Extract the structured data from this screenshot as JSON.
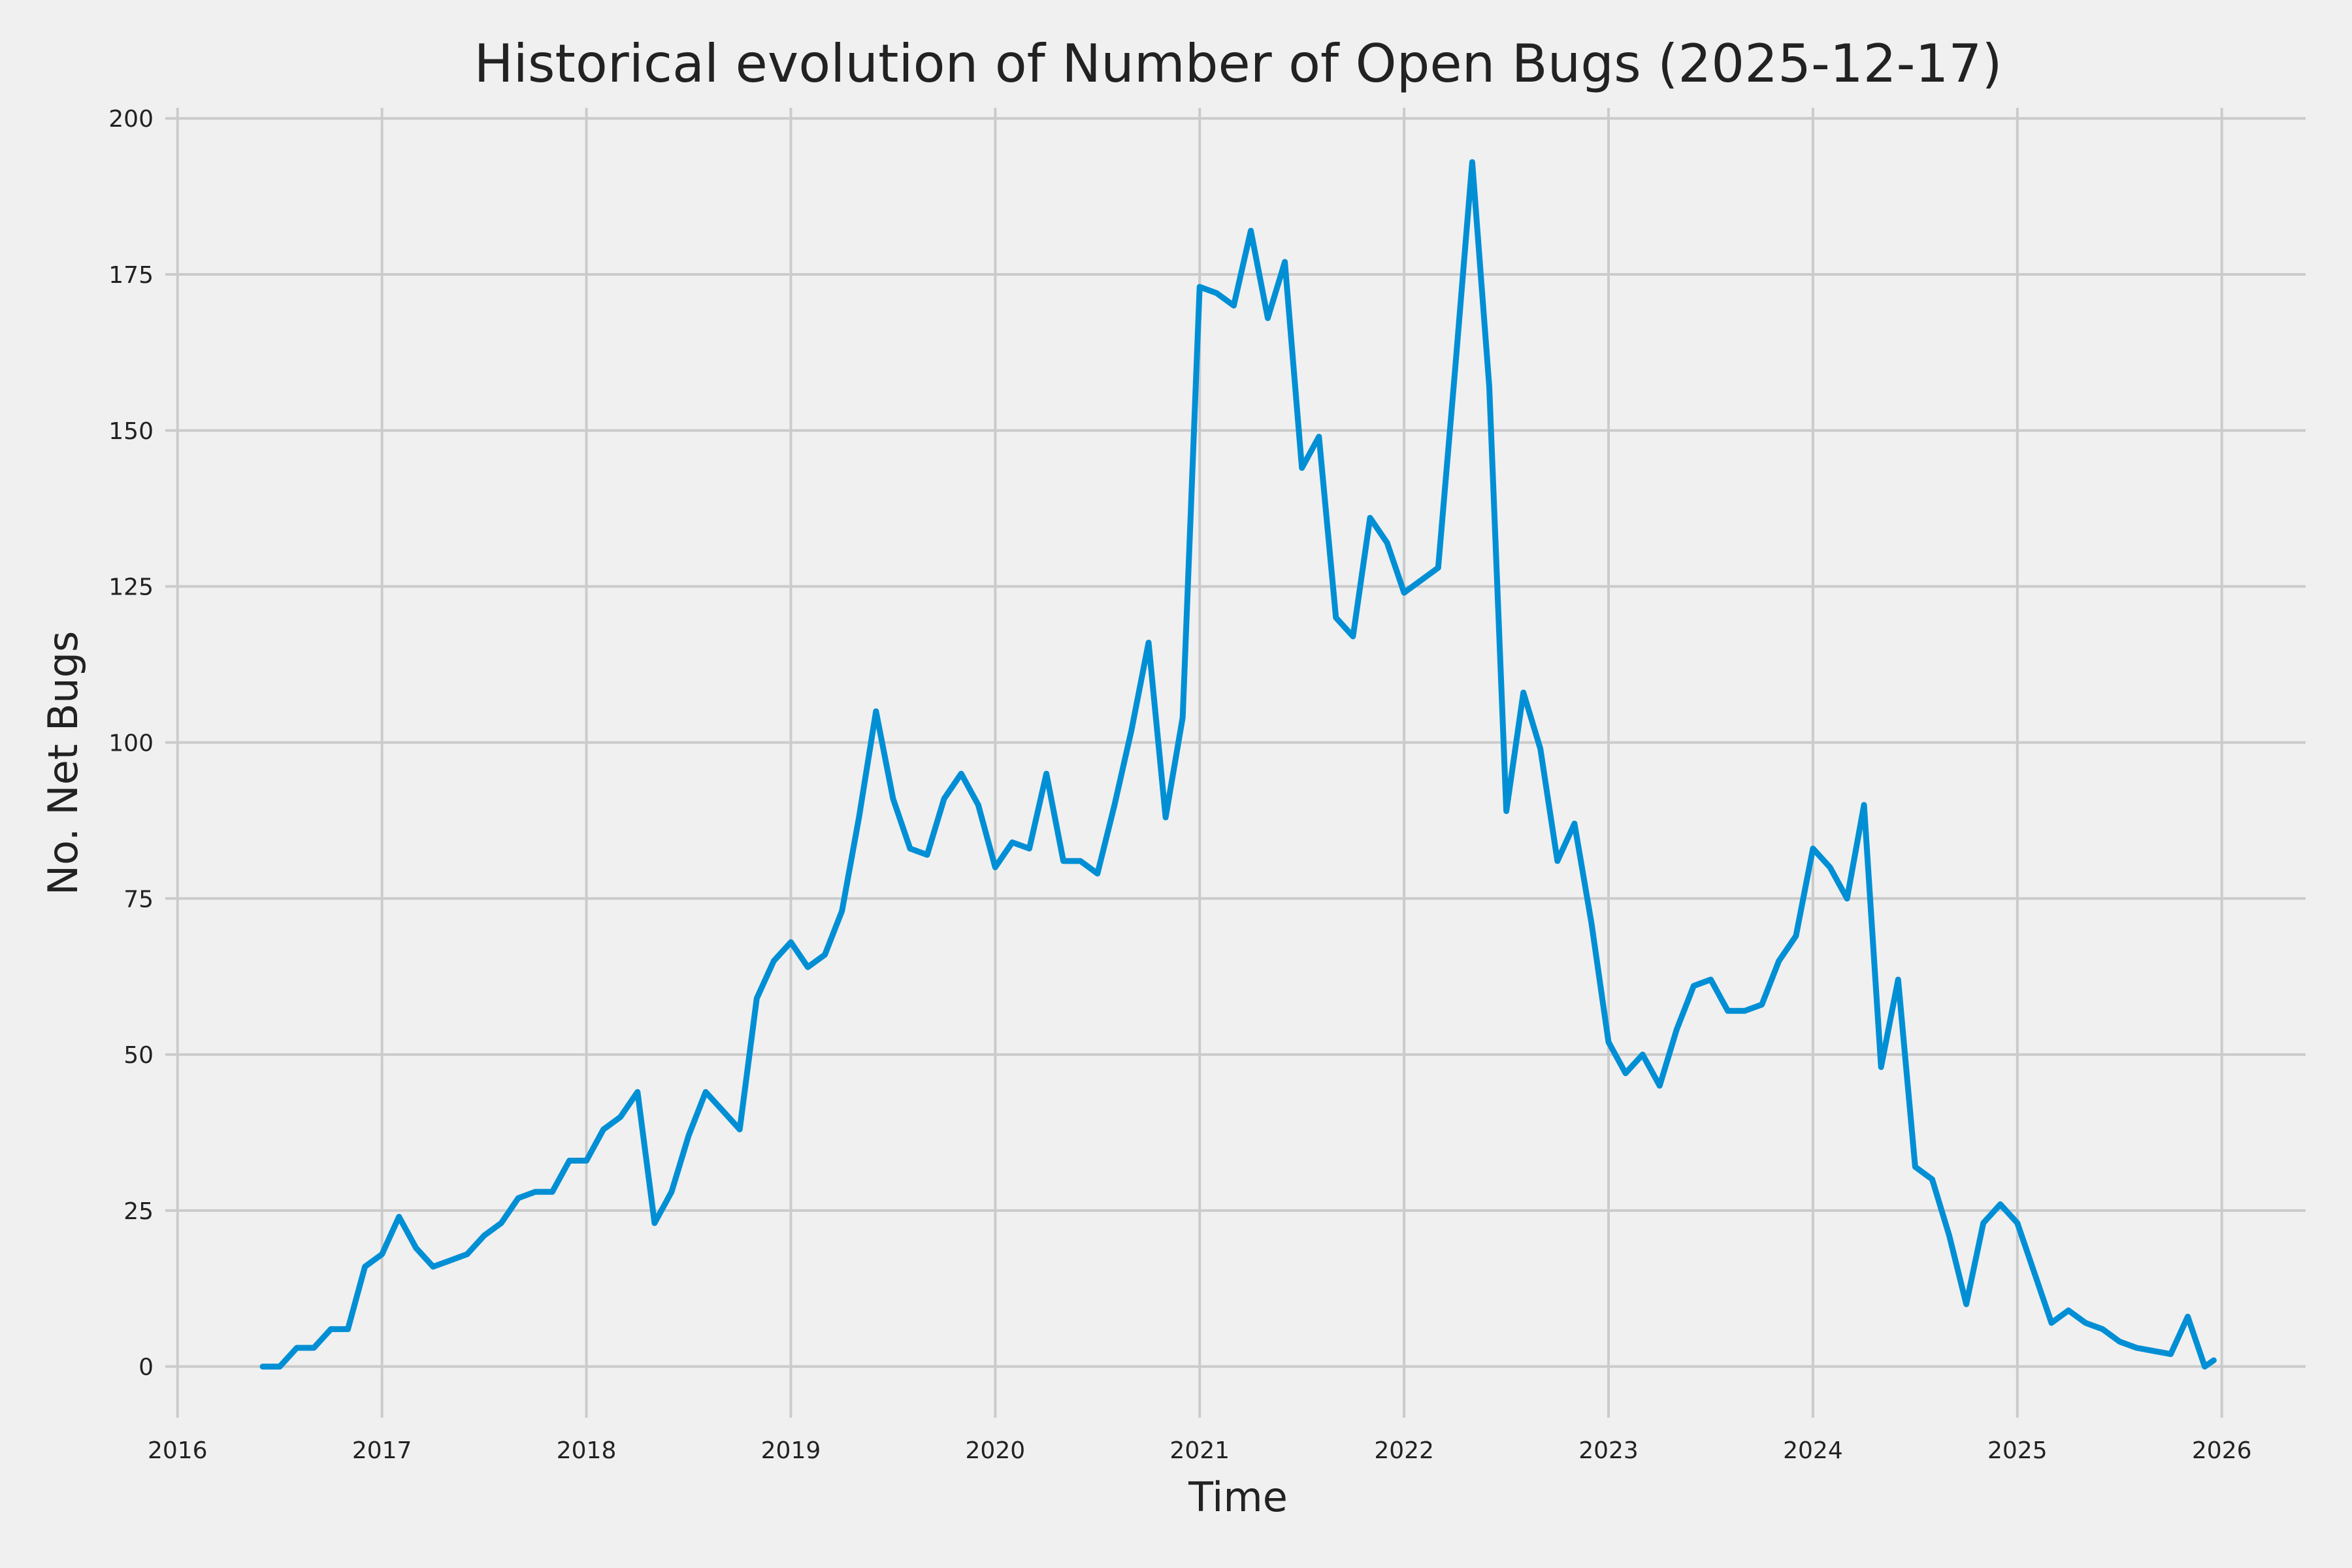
{
  "chart_data": {
    "type": "line",
    "title": "Historical evolution of Number of Open Bugs (2025-12-17)",
    "xlabel": "Time",
    "ylabel": "No. Net Bugs",
    "xlim": [
      2015.94,
      2026.41
    ],
    "ylim": [
      -8.2,
      201.7
    ],
    "x_ticks": [
      "2016",
      "2017",
      "2018",
      "2019",
      "2020",
      "2021",
      "2022",
      "2023",
      "2024",
      "2025",
      "2026"
    ],
    "y_ticks": [
      "0",
      "25",
      "50",
      "75",
      "100",
      "125",
      "150",
      "175",
      "200"
    ],
    "grid": true,
    "legend": "none",
    "colors": {
      "line": "#008fd5",
      "grid": "#cbcbcb",
      "background": "#f0f0f0"
    },
    "series": [
      {
        "x": [
          "2016-06",
          "2016-07",
          "2016-08",
          "2016-09",
          "2016-10",
          "2016-11",
          "2016-12",
          "2017-01",
          "2017-02",
          "2017-03",
          "2017-04",
          "2017-05",
          "2017-06",
          "2017-07",
          "2017-08",
          "2017-09",
          "2017-10",
          "2017-11",
          "2017-12",
          "2018-01",
          "2018-02",
          "2018-03",
          "2018-04",
          "2018-05",
          "2018-06",
          "2018-07",
          "2018-08",
          "2018-09",
          "2018-10",
          "2018-11",
          "2018-12",
          "2019-01",
          "2019-02",
          "2019-03",
          "2019-04",
          "2019-05",
          "2019-06",
          "2019-07",
          "2019-08",
          "2019-09",
          "2019-10",
          "2019-11",
          "2019-12",
          "2020-01",
          "2020-02",
          "2020-03",
          "2020-04",
          "2020-05",
          "2020-06",
          "2020-07",
          "2020-08",
          "2020-09",
          "2020-10",
          "2020-11",
          "2020-12",
          "2021-01",
          "2021-02",
          "2021-03",
          "2021-04",
          "2021-05",
          "2021-06",
          "2021-07",
          "2021-08",
          "2021-09",
          "2021-10",
          "2021-11",
          "2021-12",
          "2022-01",
          "2022-02",
          "2022-03",
          "2022-04",
          "2022-05",
          "2022-06",
          "2022-07",
          "2022-08",
          "2022-09",
          "2022-10",
          "2022-11",
          "2022-12",
          "2023-01",
          "2023-02",
          "2023-03",
          "2023-04",
          "2023-05",
          "2023-06",
          "2023-07",
          "2023-08",
          "2023-09",
          "2023-10",
          "2023-11",
          "2023-12",
          "2024-01",
          "2024-02",
          "2024-03",
          "2024-04",
          "2024-05",
          "2024-06",
          "2024-07",
          "2024-08",
          "2024-09",
          "2024-10",
          "2024-11",
          "2024-12",
          "2025-01",
          "2025-02",
          "2025-03",
          "2025-04",
          "2025-05",
          "2025-06",
          "2025-07",
          "2025-08",
          "2025-09",
          "2025-10",
          "2025-11",
          "2025-12",
          "2025-12-17"
        ],
        "y": [
          0,
          0,
          3,
          3,
          6,
          6,
          16,
          18,
          24,
          19,
          16,
          17,
          18,
          21,
          23,
          27,
          28,
          28,
          33,
          33,
          38,
          40,
          44,
          23,
          28,
          37,
          44,
          41,
          38,
          59,
          65,
          68,
          64,
          66,
          73,
          88,
          105,
          91,
          83,
          82,
          91,
          95,
          90,
          80,
          84,
          83,
          95,
          81,
          81,
          79,
          90,
          102,
          116,
          88,
          104,
          173,
          172,
          170,
          182,
          168,
          177,
          144,
          149,
          120,
          117,
          136,
          132,
          124,
          126,
          128,
          160,
          193,
          157,
          89,
          108,
          99,
          81,
          87,
          71,
          52,
          47,
          50,
          45,
          54,
          61,
          62,
          57,
          57,
          58,
          65,
          69,
          83,
          80,
          75,
          90,
          48,
          62,
          32,
          30,
          21,
          10,
          23,
          26,
          23,
          15,
          7,
          9,
          7,
          6,
          4,
          3,
          2.5,
          2,
          8,
          0,
          1
        ]
      }
    ]
  }
}
